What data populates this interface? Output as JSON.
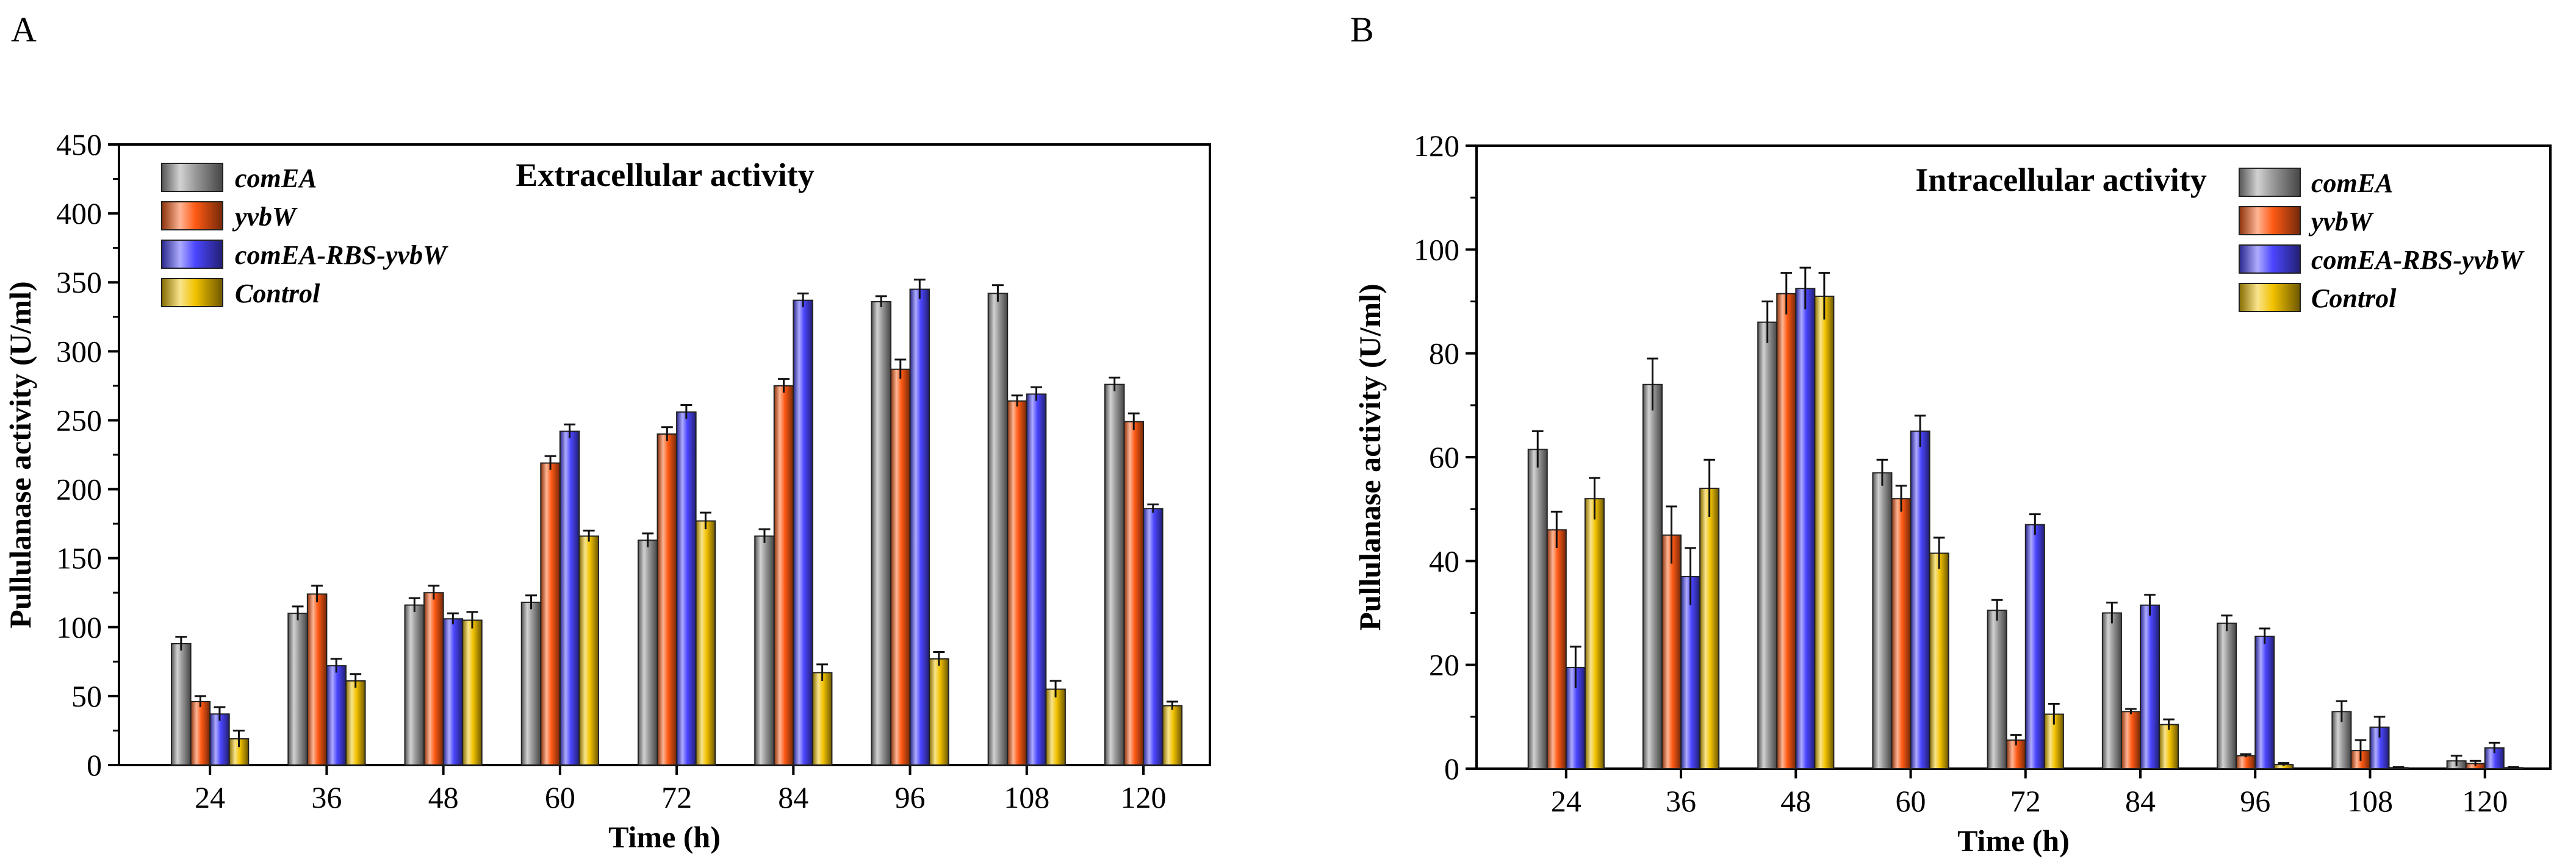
{
  "colors": {
    "comEA": "#9a9a9a",
    "yvbW": "#ff5a14",
    "comEA-RBS-yvbW": "#4b46ff",
    "Control": "#f2c200"
  },
  "chart_data": [
    {
      "panel": "A",
      "type": "bar",
      "title": "Extracellular activity",
      "xlabel": "Time (h)",
      "ylabel": "Pullulanase activity (U/ml)",
      "ylim": [
        0,
        450
      ],
      "yticks": [
        0,
        50,
        100,
        150,
        200,
        250,
        300,
        350,
        400,
        450
      ],
      "categories": [
        "24",
        "36",
        "48",
        "60",
        "72",
        "84",
        "96",
        "108",
        "120"
      ],
      "legend_position": "top-left",
      "series": [
        {
          "name": "comEA",
          "values": [
            88,
            110,
            116,
            118,
            163,
            166,
            336,
            342,
            276
          ],
          "errors": [
            5,
            5,
            5,
            5,
            5,
            5,
            4,
            6,
            5
          ]
        },
        {
          "name": "yvbW",
          "values": [
            46,
            124,
            125,
            219,
            240,
            275,
            287,
            264,
            249
          ],
          "errors": [
            4,
            6,
            5,
            5,
            5,
            5,
            7,
            4,
            6
          ]
        },
        {
          "name": "comEA-RBS-yvbW",
          "values": [
            37,
            72,
            106,
            242,
            256,
            337,
            345,
            269,
            186
          ],
          "errors": [
            5,
            5,
            4,
            5,
            5,
            5,
            7,
            5,
            3
          ]
        },
        {
          "name": "Control",
          "values": [
            19,
            61,
            105,
            166,
            177,
            67,
            77,
            55,
            43
          ],
          "errors": [
            6,
            5,
            6,
            4,
            6,
            6,
            5,
            6,
            3
          ]
        }
      ]
    },
    {
      "panel": "B",
      "type": "bar",
      "title": "Intracellular activity",
      "xlabel": "Time (h)",
      "ylabel": "Pullulanase activity (U/ml)",
      "ylim": [
        0,
        120
      ],
      "yticks": [
        0,
        20,
        40,
        60,
        80,
        100,
        120
      ],
      "categories": [
        "24",
        "36",
        "48",
        "60",
        "72",
        "84",
        "96",
        "108",
        "120"
      ],
      "legend_position": "top-right",
      "series": [
        {
          "name": "comEA",
          "values": [
            61.5,
            74,
            86,
            57,
            30.5,
            30,
            28,
            11,
            1.5
          ],
          "errors": [
            3.5,
            5,
            4,
            2.5,
            2,
            2,
            1.5,
            2,
            1
          ]
        },
        {
          "name": "yvbW",
          "values": [
            46,
            45,
            91.5,
            52,
            5.5,
            11,
            2.5,
            3.5,
            1
          ],
          "errors": [
            3.5,
            5.5,
            4,
            2.5,
            1,
            0.5,
            0.3,
            2,
            0.5
          ]
        },
        {
          "name": "comEA-RBS-yvbW",
          "values": [
            19.5,
            37,
            92.5,
            65,
            47,
            31.5,
            25.5,
            8,
            4
          ],
          "errors": [
            4,
            5.5,
            4,
            3,
            2,
            2,
            1.5,
            2,
            1
          ]
        },
        {
          "name": "Control",
          "values": [
            52,
            54,
            91,
            41.5,
            10.5,
            8.5,
            0.8,
            0.2,
            0.2
          ],
          "errors": [
            4,
            5.5,
            4.5,
            3,
            2,
            1,
            0.3,
            0.1,
            0.1
          ]
        }
      ]
    }
  ]
}
